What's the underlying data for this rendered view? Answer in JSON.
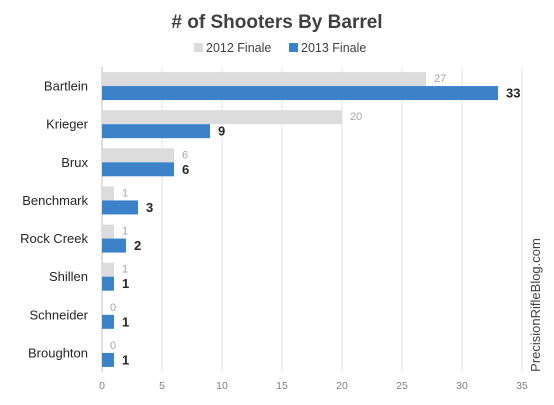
{
  "chart_data": {
    "type": "bar",
    "orientation": "horizontal",
    "title": "# of Shooters By Barrel",
    "categories": [
      "Bartlein",
      "Krieger",
      "Brux",
      "Benchmark",
      "Rock Creek",
      "Shillen",
      "Schneider",
      "Broughton"
    ],
    "series": [
      {
        "name": "2012 Finale",
        "color": "#dcdcdc",
        "values": [
          27,
          20,
          6,
          1,
          1,
          1,
          0,
          0
        ]
      },
      {
        "name": "2013 Finale",
        "color": "#3b82c8",
        "values": [
          33,
          9,
          6,
          3,
          2,
          1,
          1,
          1
        ]
      }
    ],
    "xlim": [
      0,
      35
    ],
    "x_ticks": [
      "0",
      "5",
      "10",
      "15",
      "20",
      "25",
      "30",
      "35"
    ],
    "grid": true,
    "legend_position": "top",
    "watermark": "PrecisionRifleBlog.com"
  }
}
